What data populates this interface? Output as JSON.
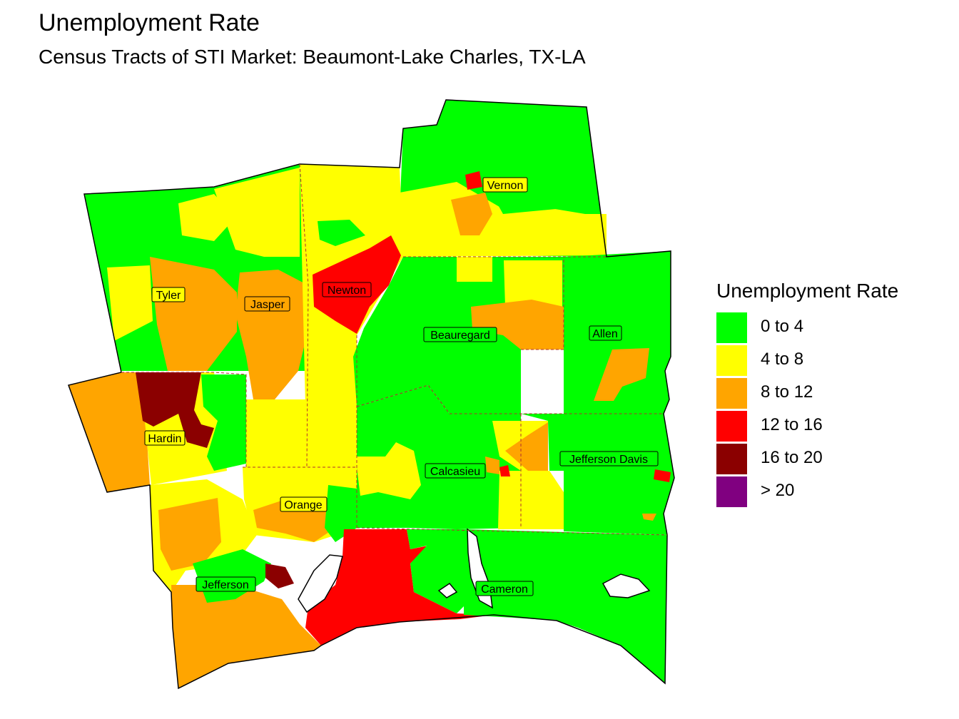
{
  "header": {
    "title": "Unemployment Rate",
    "subtitle": "Census Tracts of STI Market: Beaumont-Lake Charles, TX-LA"
  },
  "legend": {
    "title": "Unemployment Rate",
    "items": [
      {
        "label": "0 to 4",
        "color": "#00ff00"
      },
      {
        "label": "4 to 8",
        "color": "#ffff00"
      },
      {
        "label": "8 to 12",
        "color": "#ffa500"
      },
      {
        "label": "12 to 16",
        "color": "#ff0000"
      },
      {
        "label": "16 to 20",
        "color": "#8b0000"
      },
      {
        "label": "> 20",
        "color": "#800080"
      }
    ]
  },
  "counties": [
    {
      "name": "Vernon"
    },
    {
      "name": "Tyler"
    },
    {
      "name": "Jasper"
    },
    {
      "name": "Newton"
    },
    {
      "name": "Beauregard"
    },
    {
      "name": "Allen"
    },
    {
      "name": "Hardin"
    },
    {
      "name": "Jefferson Davis"
    },
    {
      "name": "Calcasieu"
    },
    {
      "name": "Orange"
    },
    {
      "name": "Jefferson"
    },
    {
      "name": "Cameron"
    }
  ]
}
